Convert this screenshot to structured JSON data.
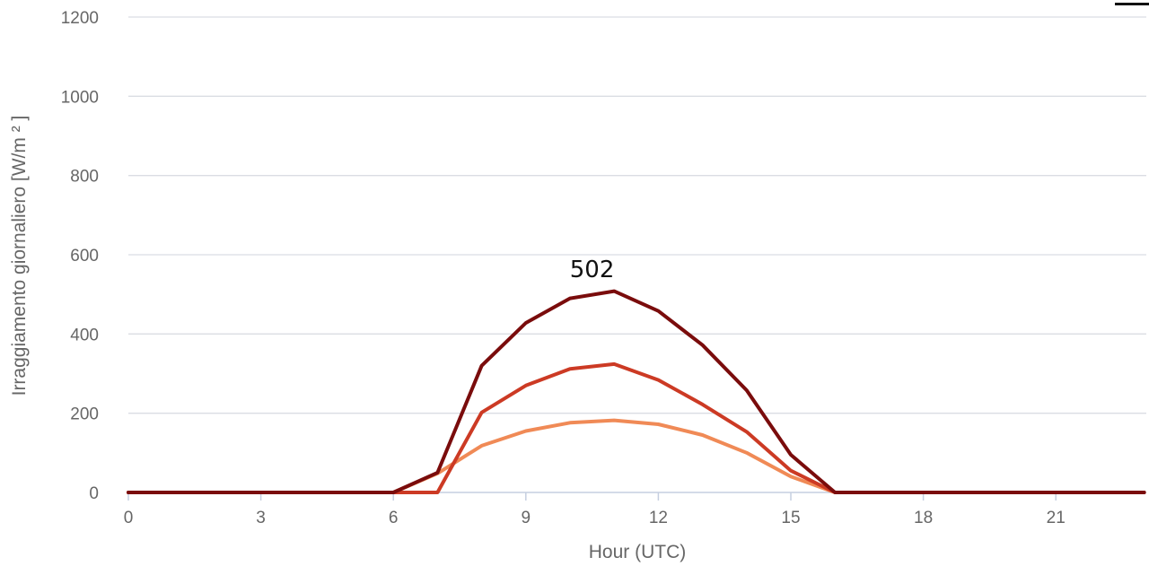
{
  "chart_data": {
    "type": "line",
    "title": "",
    "xlabel": "Hour (UTC)",
    "ylabel": "Irraggiamento giornaliero [W/m ² ]",
    "xlim": [
      0,
      23
    ],
    "ylim": [
      0,
      1200
    ],
    "x_ticks": [
      "0",
      "3",
      "6",
      "9",
      "12",
      "15",
      "18",
      "21"
    ],
    "y_ticks": [
      "0",
      "200",
      "400",
      "600",
      "800",
      "1000",
      "1200"
    ],
    "grid": true,
    "x": [
      0,
      1,
      2,
      3,
      4,
      5,
      6,
      7,
      8,
      9,
      10,
      11,
      12,
      13,
      14,
      15,
      16,
      17,
      18,
      19,
      20,
      21,
      22,
      23
    ],
    "series": [
      {
        "color": "#7a0c0c",
        "values": [
          0,
          0,
          0,
          0,
          0,
          0,
          0,
          50,
          320,
          428,
          490,
          508,
          458,
          372,
          258,
          95,
          0,
          0,
          0,
          0,
          0,
          0,
          0,
          0
        ]
      },
      {
        "color": "#cc3a24",
        "values": [
          0,
          0,
          0,
          0,
          0,
          0,
          0,
          0,
          202,
          270,
          312,
          324,
          284,
          222,
          153,
          55,
          0,
          0,
          0,
          0,
          0,
          0,
          0,
          0
        ]
      },
      {
        "color": "#f08a56",
        "values": [
          0,
          0,
          0,
          0,
          0,
          0,
          0,
          48,
          118,
          155,
          176,
          182,
          172,
          145,
          100,
          40,
          0,
          0,
          0,
          0,
          0,
          0,
          0,
          0
        ]
      }
    ],
    "annotations": [
      {
        "text": "502",
        "x": 10.5,
        "y": 580
      }
    ]
  }
}
